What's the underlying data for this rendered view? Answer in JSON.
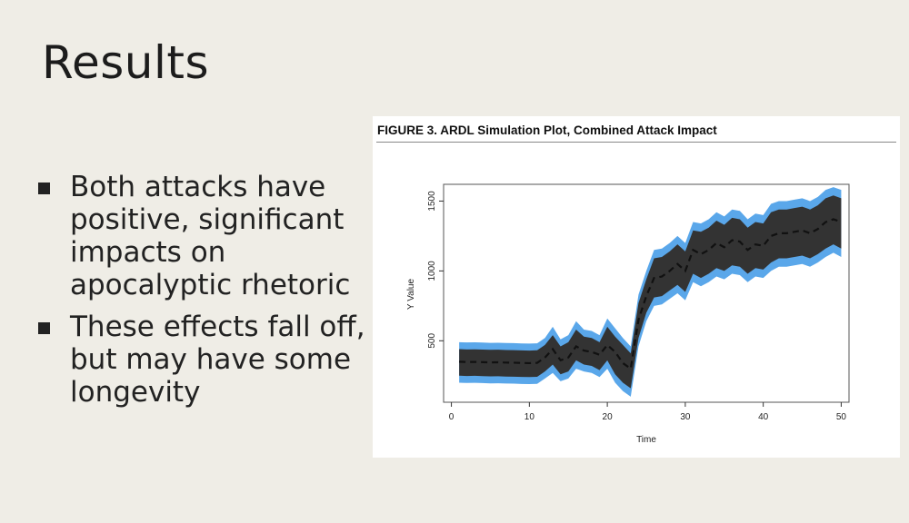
{
  "slide": {
    "title": "Results",
    "bullets": [
      "Both attacks have positive, significant impacts on apocalyptic rhetoric",
      "These effects fall off, but may have some longevity"
    ]
  },
  "chart_data": {
    "type": "line",
    "title": "FIGURE 3. ARDL Simulation Plot, Combined Attack Impact",
    "xlabel": "Time",
    "ylabel": "Y Value",
    "xlim": [
      -1,
      51
    ],
    "ylim": [
      60,
      1620
    ],
    "xticks": [
      0,
      10,
      20,
      30,
      40,
      50
    ],
    "yticks": [
      500,
      1000,
      1500
    ],
    "grid": false,
    "x": [
      1,
      2,
      3,
      4,
      5,
      6,
      7,
      8,
      9,
      10,
      11,
      12,
      13,
      14,
      15,
      16,
      17,
      18,
      19,
      20,
      21,
      22,
      23,
      24,
      25,
      26,
      27,
      28,
      29,
      30,
      31,
      32,
      33,
      34,
      35,
      36,
      37,
      38,
      39,
      40,
      41,
      42,
      43,
      44,
      45,
      46,
      47,
      48,
      49,
      50
    ],
    "series": [
      {
        "values": [
          350,
          348,
          349,
          347,
          345,
          346,
          344,
          343,
          341,
          340,
          342,
          380,
          440,
          360,
          380,
          460,
          430,
          420,
          400,
          470,
          420,
          340,
          300,
          650,
          820,
          950,
          960,
          1000,
          1050,
          1000,
          1150,
          1120,
          1150,
          1200,
          1170,
          1220,
          1210,
          1150,
          1190,
          1180,
          1250,
          1270,
          1270,
          1280,
          1290,
          1270,
          1300,
          1350,
          1370,
          1350
        ],
        "band_inner_lower": [
          250,
          248,
          249,
          247,
          245,
          246,
          244,
          243,
          241,
          240,
          242,
          280,
          330,
          260,
          280,
          360,
          330,
          320,
          290,
          360,
          260,
          200,
          160,
          520,
          700,
          810,
          820,
          860,
          900,
          850,
          980,
          950,
          980,
          1020,
          1000,
          1040,
          1030,
          980,
          1020,
          1010,
          1060,
          1090,
          1090,
          1100,
          1110,
          1090,
          1120,
          1160,
          1190,
          1160
        ],
        "band_inner_upper": [
          440,
          438,
          439,
          437,
          435,
          436,
          434,
          433,
          431,
          430,
          432,
          470,
          540,
          460,
          490,
          580,
          530,
          520,
          490,
          600,
          530,
          470,
          410,
          770,
          940,
          1090,
          1100,
          1140,
          1190,
          1140,
          1290,
          1280,
          1310,
          1360,
          1330,
          1380,
          1370,
          1310,
          1350,
          1340,
          1420,
          1440,
          1440,
          1450,
          1460,
          1440,
          1470,
          1520,
          1540,
          1520
        ],
        "band_outer_lower": [
          200,
          198,
          199,
          197,
          195,
          196,
          194,
          193,
          191,
          190,
          192,
          230,
          270,
          210,
          230,
          300,
          280,
          270,
          240,
          300,
          200,
          140,
          100,
          460,
          640,
          750,
          760,
          800,
          840,
          790,
          920,
          890,
          920,
          960,
          940,
          980,
          970,
          920,
          960,
          950,
          1000,
          1030,
          1030,
          1040,
          1050,
          1030,
          1060,
          1100,
          1130,
          1100
        ],
        "band_outer_upper": [
          490,
          488,
          489,
          487,
          485,
          486,
          484,
          483,
          481,
          480,
          482,
          520,
          600,
          510,
          540,
          640,
          580,
          570,
          540,
          660,
          590,
          520,
          460,
          830,
          1000,
          1150,
          1160,
          1200,
          1250,
          1200,
          1350,
          1340,
          1370,
          1420,
          1390,
          1440,
          1430,
          1370,
          1410,
          1400,
          1480,
          1500,
          1500,
          1510,
          1520,
          1500,
          1530,
          1580,
          1600,
          1580
        ]
      }
    ],
    "colors": {
      "outer_band": "#5aa7ea",
      "inner_band": "#333333",
      "line": "#111111",
      "frame": "#555555"
    }
  }
}
